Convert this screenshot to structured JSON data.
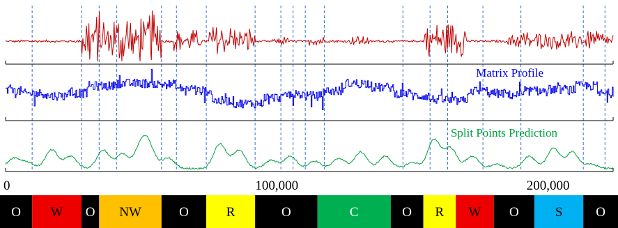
{
  "chart_data": {
    "type": "line",
    "x_range": [
      0,
      224000
    ],
    "x_ticks": [
      0,
      100000,
      200000
    ],
    "x_tick_labels": [
      "0",
      "100,000",
      "200,000"
    ],
    "split_points": [
      9800,
      28000,
      34500,
      41000,
      57500,
      63000,
      74000,
      92000,
      101500,
      106000,
      110500,
      117500,
      146500,
      156500,
      163000,
      176000,
      190000,
      213000,
      221000
    ],
    "panels": [
      {
        "key": "signal",
        "label": "",
        "color": "#c00000",
        "style": "spiky",
        "baseline": 0.35,
        "bursts": [
          [
            28000,
            57500,
            0.9
          ],
          [
            62000,
            72000,
            0.35
          ],
          [
            75000,
            92000,
            0.45
          ],
          [
            98000,
            104000,
            0.15
          ],
          [
            112000,
            118000,
            0.15
          ],
          [
            127000,
            134000,
            0.15
          ],
          [
            154000,
            170000,
            0.55
          ],
          [
            185000,
            224000,
            0.3
          ]
        ]
      },
      {
        "key": "matrix_profile",
        "label": "Matrix Profile",
        "color": "#0000ee",
        "style": "step",
        "levels": [
          [
            0,
            0.55
          ],
          [
            6000,
            0.5
          ],
          [
            15000,
            0.45
          ],
          [
            22000,
            0.5
          ],
          [
            30000,
            0.65
          ],
          [
            40000,
            0.7
          ],
          [
            55000,
            0.68
          ],
          [
            63000,
            0.6
          ],
          [
            70000,
            0.55
          ],
          [
            76000,
            0.35
          ],
          [
            84000,
            0.3
          ],
          [
            95000,
            0.42
          ],
          [
            103000,
            0.48
          ],
          [
            110000,
            0.45
          ],
          [
            117000,
            0.55
          ],
          [
            125000,
            0.7
          ],
          [
            135000,
            0.62
          ],
          [
            143000,
            0.5
          ],
          [
            150000,
            0.45
          ],
          [
            156000,
            0.38
          ],
          [
            163000,
            0.35
          ],
          [
            170000,
            0.55
          ],
          [
            178000,
            0.5
          ],
          [
            185000,
            0.47
          ],
          [
            192000,
            0.55
          ],
          [
            200000,
            0.58
          ],
          [
            210000,
            0.65
          ],
          [
            218000,
            0.5
          ],
          [
            224000,
            0.45
          ]
        ]
      },
      {
        "key": "split_points_prediction",
        "label": "Split Points Prediction",
        "color": "#00a040",
        "style": "smooth",
        "peaks": [
          [
            3000,
            0.25
          ],
          [
            8000,
            0.15
          ],
          [
            17000,
            0.45
          ],
          [
            24000,
            0.3
          ],
          [
            36000,
            0.45
          ],
          [
            43000,
            0.35
          ],
          [
            50000,
            0.55
          ],
          [
            53000,
            0.45
          ],
          [
            60000,
            0.25
          ],
          [
            79000,
            0.6
          ],
          [
            86000,
            0.45
          ],
          [
            98000,
            0.2
          ],
          [
            105000,
            0.3
          ],
          [
            114000,
            0.18
          ],
          [
            123000,
            0.25
          ],
          [
            131000,
            0.4
          ],
          [
            140000,
            0.3
          ],
          [
            150000,
            0.15
          ],
          [
            158000,
            0.7
          ],
          [
            164000,
            0.5
          ],
          [
            172000,
            0.3
          ],
          [
            181000,
            0.1
          ],
          [
            193000,
            0.3
          ],
          [
            202000,
            0.5
          ],
          [
            209000,
            0.4
          ],
          [
            216000,
            0.1
          ]
        ]
      }
    ]
  },
  "segments": [
    {
      "label": "O",
      "start": 0,
      "end": 9800,
      "fill": "#000000",
      "text": "#ffffff"
    },
    {
      "label": "W",
      "start": 9800,
      "end": 28000,
      "fill": "#ee0000",
      "text": "#000000"
    },
    {
      "label": "O",
      "start": 28000,
      "end": 34500,
      "fill": "#000000",
      "text": "#ffffff"
    },
    {
      "label": "NW",
      "start": 34500,
      "end": 57500,
      "fill": "#ffc000",
      "text": "#000000"
    },
    {
      "label": "O",
      "start": 57500,
      "end": 74000,
      "fill": "#000000",
      "text": "#ffffff"
    },
    {
      "label": "R",
      "start": 74000,
      "end": 92000,
      "fill": "#ffff00",
      "text": "#000000"
    },
    {
      "label": "O",
      "start": 92000,
      "end": 115000,
      "fill": "#000000",
      "text": "#ffffff"
    },
    {
      "label": "C",
      "start": 115000,
      "end": 142000,
      "fill": "#00b050",
      "text": "#ffffff"
    },
    {
      "label": "O",
      "start": 142000,
      "end": 154000,
      "fill": "#000000",
      "text": "#ffffff"
    },
    {
      "label": "R",
      "start": 154000,
      "end": 166000,
      "fill": "#ffff00",
      "text": "#000000"
    },
    {
      "label": "W",
      "start": 166000,
      "end": 180000,
      "fill": "#ee0000",
      "text": "#000000"
    },
    {
      "label": "O",
      "start": 180000,
      "end": 195000,
      "fill": "#000000",
      "text": "#ffffff"
    },
    {
      "label": "S",
      "start": 195000,
      "end": 213000,
      "fill": "#00b0f0",
      "text": "#000000"
    },
    {
      "label": "O",
      "start": 213000,
      "end": 224000,
      "fill": "#000000",
      "text": "#ffffff"
    }
  ]
}
